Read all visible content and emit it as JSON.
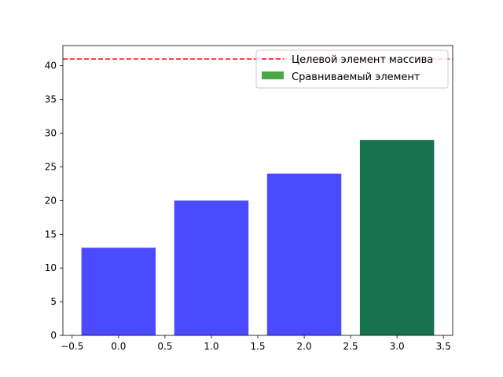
{
  "chart_data": {
    "type": "bar",
    "x": [
      0,
      1,
      2,
      3
    ],
    "values": [
      13,
      20,
      24,
      29
    ],
    "bar_width": 0.8,
    "bar_colors": [
      "#4a4aff",
      "#4a4aff",
      "#4a4aff",
      "#17724f"
    ],
    "xlim": [
      -0.6,
      3.6
    ],
    "ylim": [
      0,
      43
    ],
    "xticks": [
      -0.5,
      0.0,
      0.5,
      1.0,
      1.5,
      2.0,
      2.5,
      3.0,
      3.5
    ],
    "xtick_labels": [
      "−0.5",
      "0.0",
      "0.5",
      "1.0",
      "1.5",
      "2.0",
      "2.5",
      "3.0",
      "3.5"
    ],
    "yticks": [
      0,
      5,
      10,
      15,
      20,
      25,
      30,
      35,
      40
    ],
    "ytick_labels": [
      "0",
      "5",
      "10",
      "15",
      "20",
      "25",
      "30",
      "35",
      "40"
    ],
    "target_line": {
      "y": 41,
      "color": "#ff0000",
      "style": "dashed"
    },
    "grid": false,
    "legend": {
      "placement": "top-right",
      "entries": [
        {
          "label": "Целевой элемент массива",
          "kind": "dashed-line",
          "color": "#ff0000"
        },
        {
          "label": "Сравниваемый элемент",
          "kind": "patch",
          "color": "#4aa84a"
        }
      ]
    },
    "title": "",
    "xlabel": "",
    "ylabel": ""
  }
}
